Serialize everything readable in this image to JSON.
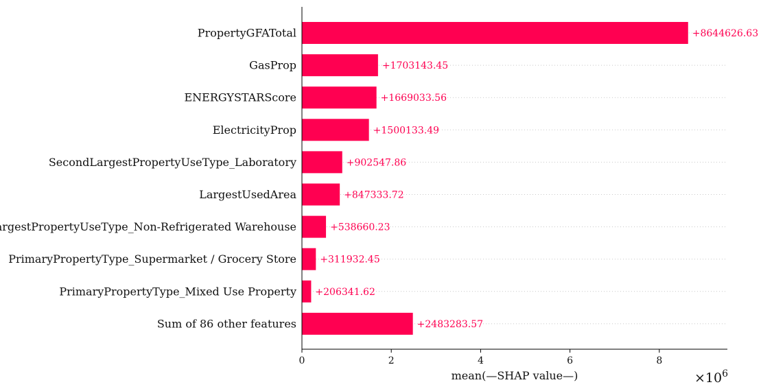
{
  "chart_data": {
    "type": "bar",
    "orientation": "horizontal",
    "categories": [
      "PropertyGFATotal",
      "GasProp",
      "ENERGYSTARScore",
      "ElectricityProp",
      "SecondLargestPropertyUseType_Laboratory",
      "LargestUsedArea",
      "LargestPropertyUseType_Non-Refrigerated Warehouse",
      "PrimaryPropertyType_Supermarket / Grocery Store",
      "PrimaryPropertyType_Mixed Use Property",
      "Sum of 86 other features"
    ],
    "values": [
      8644626.63,
      1703143.45,
      1669033.56,
      1500133.49,
      902547.86,
      847333.72,
      538660.23,
      311932.45,
      206341.62,
      2483283.57
    ],
    "value_labels": [
      "+8644626.63",
      "+1703143.45",
      "+1669033.56",
      "+1500133.49",
      "+902547.86",
      "+847333.72",
      "+538660.23",
      "+311932.45",
      "+206341.62",
      "+2483283.57"
    ],
    "xlabel": "mean(—SHAP value—)",
    "xscale_label": "×10",
    "xscale_exponent": "6",
    "xticks": [
      0,
      2000000,
      4000000,
      6000000,
      8000000
    ],
    "xtick_labels": [
      "0",
      "2",
      "4",
      "6",
      "8"
    ],
    "xlim": [
      0,
      9500000
    ],
    "bar_color": "#ff0051",
    "grid": "dotted horizontal guide lines"
  }
}
